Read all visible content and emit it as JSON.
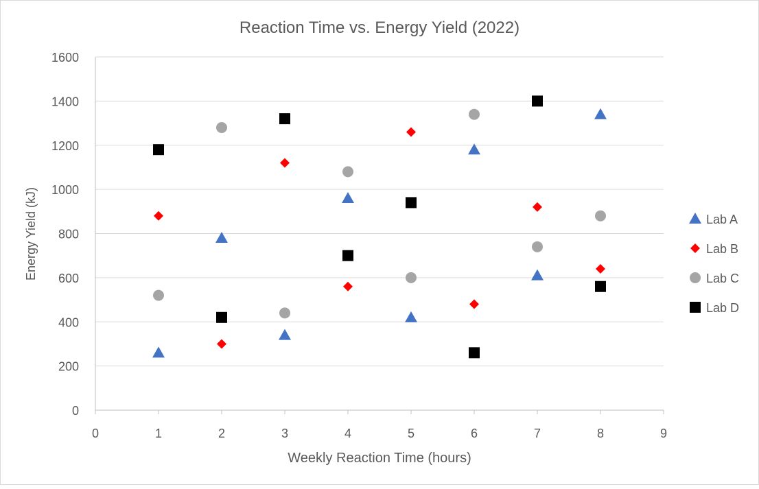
{
  "chart_data": {
    "type": "scatter",
    "title": "Reaction Time vs. Energy Yield (2022)",
    "xlabel": "Weekly Reaction Time (hours)",
    "ylabel": "Energy Yield (kJ)",
    "xlim": [
      0,
      9
    ],
    "ylim": [
      0,
      1600
    ],
    "xticks": [
      "0",
      "1",
      "2",
      "3",
      "4",
      "5",
      "6",
      "7",
      "8",
      "9"
    ],
    "yticks": [
      "0",
      "200",
      "400",
      "600",
      "800",
      "1000",
      "1200",
      "1400",
      "1600"
    ],
    "grid": "horizontal",
    "legend": "right",
    "series": [
      {
        "name": "Lab A",
        "marker": "triangle",
        "color": "#4472C4",
        "x": [
          1,
          2,
          3,
          4,
          5,
          6,
          7,
          8
        ],
        "y": [
          260,
          780,
          340,
          960,
          420,
          1180,
          610,
          1340
        ]
      },
      {
        "name": "Lab B",
        "marker": "diamond",
        "color": "#FF0000",
        "x": [
          1,
          2,
          3,
          4,
          5,
          6,
          7,
          8
        ],
        "y": [
          880,
          300,
          1120,
          560,
          1260,
          480,
          920,
          640
        ]
      },
      {
        "name": "Lab C",
        "marker": "circle",
        "color": "#A5A5A5",
        "x": [
          1,
          2,
          3,
          4,
          5,
          6,
          7,
          8
        ],
        "y": [
          520,
          1280,
          440,
          1080,
          600,
          1340,
          740,
          880
        ]
      },
      {
        "name": "Lab D",
        "marker": "square",
        "color": "#000000",
        "x": [
          1,
          2,
          3,
          4,
          5,
          6,
          7,
          8
        ],
        "y": [
          1180,
          420,
          1320,
          700,
          940,
          260,
          1400,
          560
        ]
      }
    ]
  }
}
